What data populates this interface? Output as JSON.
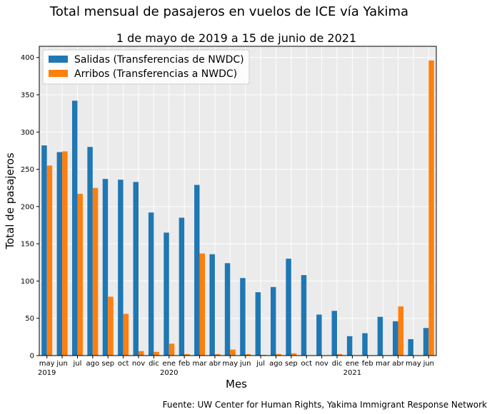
{
  "chart_data": {
    "type": "bar",
    "title": "Total mensual de pasajeros en vuelos de ICE vía Yakima",
    "subtitle": "1 de mayo de 2019 a 15 de junio de 2021",
    "xlabel": "Mes",
    "ylabel": "Total de pasajeros",
    "ylim": [
      0,
      415
    ],
    "yticks": [
      0,
      50,
      100,
      150,
      200,
      250,
      300,
      350,
      400
    ],
    "grid": true,
    "legend_position": "top-left",
    "categories": [
      "may",
      "jun",
      "jul",
      "ago",
      "sep",
      "oct",
      "nov",
      "dic",
      "ene",
      "feb",
      "mar",
      "abr",
      "may",
      "jun",
      "jul",
      "ago",
      "sep",
      "oct",
      "nov",
      "dic",
      "ene",
      "feb",
      "mar",
      "abr",
      "may",
      "jun"
    ],
    "year_labels": [
      {
        "index": 0,
        "label": "2019"
      },
      {
        "index": 8,
        "label": "2020"
      },
      {
        "index": 20,
        "label": "2021"
      }
    ],
    "series": [
      {
        "name": "Salidas (Transferencias de NWDC)",
        "color": "#1f77b4",
        "values": [
          282,
          273,
          342,
          280,
          237,
          236,
          233,
          192,
          165,
          185,
          229,
          136,
          124,
          104,
          85,
          92,
          130,
          108,
          55,
          60,
          26,
          30,
          52,
          46,
          22,
          37
        ]
      },
      {
        "name": "Arribos (Transferencias a NWDC)",
        "color": "#ff7f0e",
        "values": [
          255,
          274,
          217,
          225,
          79,
          56,
          6,
          5,
          16,
          2,
          137,
          2,
          8,
          2,
          1,
          2,
          3,
          0,
          0,
          2,
          0,
          0,
          0,
          66,
          0,
          396
        ]
      }
    ],
    "source": "Fuente: UW Center for Human Rights, Yakima Immigrant Response Network"
  }
}
